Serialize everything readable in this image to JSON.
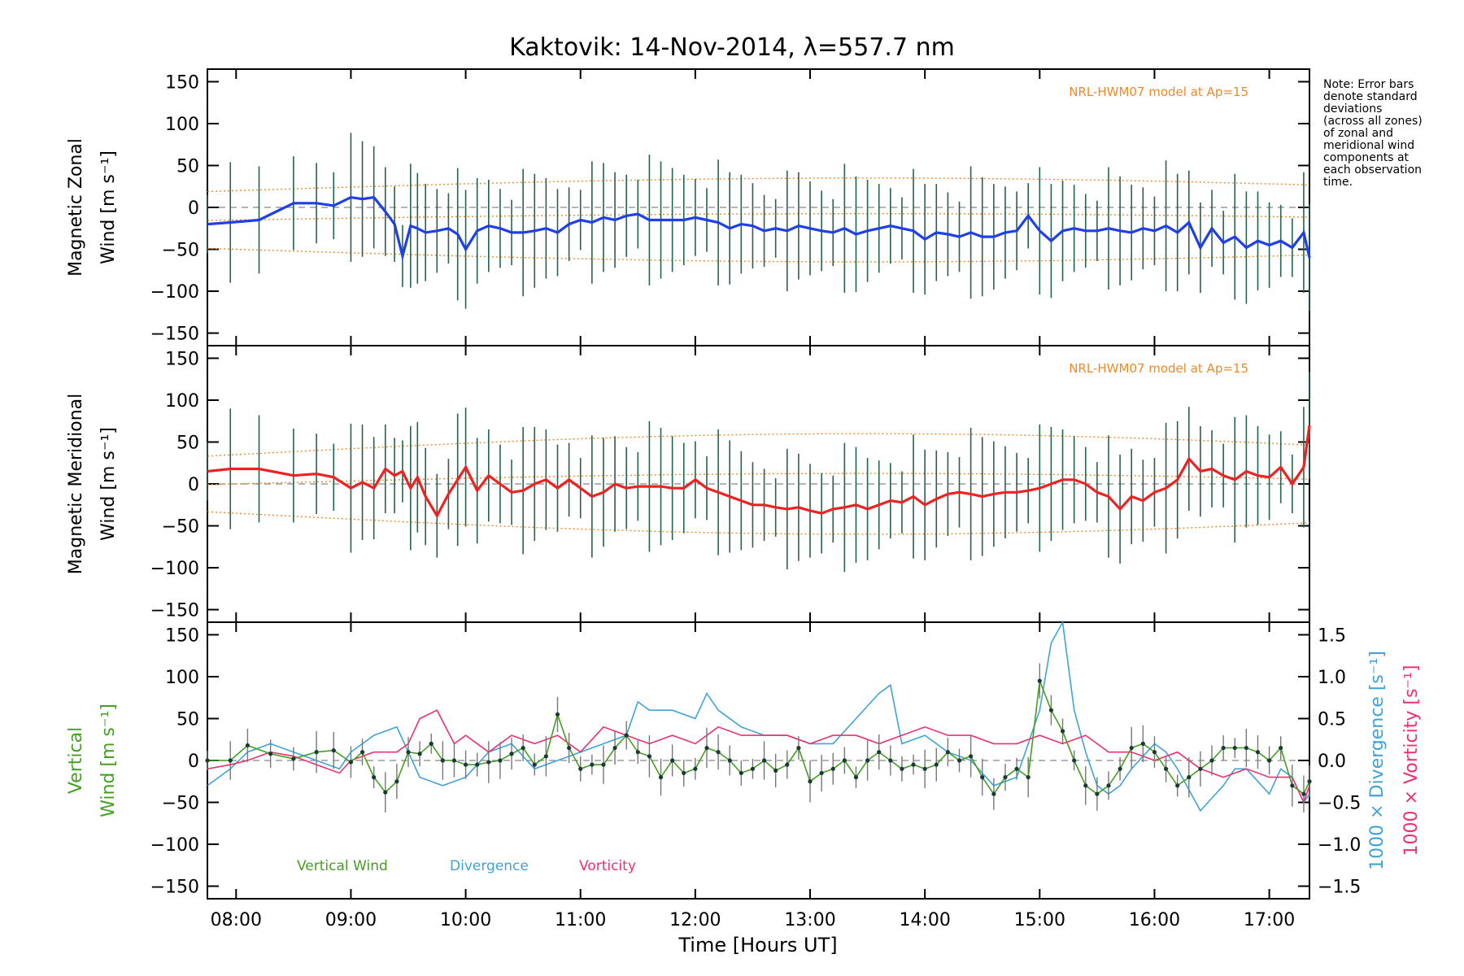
{
  "title": "Kaktovik: 14-Nov-2014, λ=557.7 nm",
  "note": [
    "Note: Error bars",
    "denote standard",
    "deviations",
    "(across all zones)",
    "of zonal and",
    "meridional wind",
    "components at",
    "each observation",
    "time."
  ],
  "xlabel": "Time [Hours UT]",
  "colors": {
    "zonal": "#1f3fe8",
    "meridional": "#ee2222",
    "vertical": "#44a020",
    "divergence": "#3fa3d8",
    "vorticity": "#ee3070",
    "model": "#f08a28",
    "errorbar": "#2a6050"
  },
  "chart_data": [
    {
      "type": "line",
      "name": "zonal",
      "ylabel_1": "Magnetic Zonal",
      "ylabel_2": "Wind [m s⁻¹]",
      "ylim": [
        -165,
        165
      ],
      "model_label": "NRL-HWM07 model at Ap=15",
      "series": [
        {
          "name": "Magnetic Zonal Wind",
          "x": [
            7.75,
            7.95,
            8.2,
            8.5,
            8.7,
            8.85,
            9.0,
            9.1,
            9.2,
            9.3,
            9.38,
            9.45,
            9.52,
            9.58,
            9.65,
            9.75,
            9.85,
            9.93,
            10.0,
            10.1,
            10.2,
            10.3,
            10.4,
            10.5,
            10.6,
            10.7,
            10.8,
            10.9,
            11.0,
            11.1,
            11.2,
            11.3,
            11.4,
            11.5,
            11.6,
            11.7,
            11.8,
            11.9,
            12.0,
            12.1,
            12.2,
            12.3,
            12.4,
            12.5,
            12.6,
            12.7,
            12.8,
            12.9,
            13.0,
            13.1,
            13.2,
            13.3,
            13.4,
            13.5,
            13.6,
            13.7,
            13.8,
            13.9,
            14.0,
            14.1,
            14.2,
            14.3,
            14.4,
            14.5,
            14.6,
            14.7,
            14.8,
            14.9,
            15.0,
            15.1,
            15.2,
            15.3,
            15.4,
            15.5,
            15.6,
            15.7,
            15.8,
            15.9,
            16.0,
            16.1,
            16.2,
            16.3,
            16.4,
            16.5,
            16.6,
            16.7,
            16.8,
            16.9,
            17.0,
            17.1,
            17.2,
            17.3,
            17.35
          ],
          "y": [
            -20,
            -18,
            -15,
            5,
            5,
            2,
            12,
            10,
            12,
            -5,
            -20,
            -58,
            -22,
            -25,
            -30,
            -28,
            -25,
            -32,
            -50,
            -28,
            -22,
            -25,
            -30,
            -30,
            -28,
            -25,
            -30,
            -20,
            -15,
            -18,
            -12,
            -15,
            -10,
            -8,
            -15,
            -15,
            -15,
            -15,
            -12,
            -15,
            -18,
            -25,
            -20,
            -22,
            -28,
            -25,
            -28,
            -22,
            -25,
            -28,
            -30,
            -25,
            -32,
            -28,
            -25,
            -22,
            -25,
            -28,
            -38,
            -30,
            -32,
            -35,
            -30,
            -35,
            -35,
            -30,
            -28,
            -10,
            -28,
            -40,
            -28,
            -25,
            -28,
            -28,
            -25,
            -28,
            -30,
            -25,
            -28,
            -22,
            -30,
            -18,
            -48,
            -25,
            -42,
            -35,
            -48,
            -40,
            -45,
            -40,
            -48,
            -30,
            -60
          ]
        }
      ],
      "categories": [
        "08:00",
        "09:00",
        "10:00",
        "11:00",
        "12:00",
        "13:00",
        "14:00",
        "15:00",
        "16:00",
        "17:00"
      ],
      "yticks": [
        "150",
        "100",
        "50",
        "0",
        "−50",
        "−100",
        "−150"
      ]
    },
    {
      "type": "line",
      "name": "meridional",
      "ylabel_1": "Magnetic Meridional",
      "ylabel_2": "Wind [m s⁻¹]",
      "ylim": [
        -165,
        165
      ],
      "model_label": "NRL-HWM07 model at Ap=15",
      "series": [
        {
          "name": "Magnetic Meridional Wind",
          "x": [
            7.75,
            7.95,
            8.2,
            8.5,
            8.7,
            8.85,
            9.0,
            9.1,
            9.2,
            9.3,
            9.38,
            9.45,
            9.52,
            9.58,
            9.65,
            9.75,
            9.85,
            9.93,
            10.0,
            10.1,
            10.2,
            10.3,
            10.4,
            10.5,
            10.6,
            10.7,
            10.8,
            10.9,
            11.0,
            11.1,
            11.2,
            11.3,
            11.4,
            11.5,
            11.6,
            11.7,
            11.8,
            11.9,
            12.0,
            12.1,
            12.2,
            12.3,
            12.4,
            12.5,
            12.6,
            12.7,
            12.8,
            12.9,
            13.0,
            13.1,
            13.2,
            13.3,
            13.4,
            13.5,
            13.6,
            13.7,
            13.8,
            13.9,
            14.0,
            14.1,
            14.2,
            14.3,
            14.4,
            14.5,
            14.6,
            14.7,
            14.8,
            14.9,
            15.0,
            15.1,
            15.2,
            15.3,
            15.4,
            15.5,
            15.6,
            15.7,
            15.8,
            15.9,
            16.0,
            16.1,
            16.2,
            16.3,
            16.4,
            16.5,
            16.6,
            16.7,
            16.8,
            16.9,
            17.0,
            17.1,
            17.2,
            17.3,
            17.35
          ],
          "y": [
            15,
            18,
            18,
            10,
            12,
            8,
            -5,
            2,
            -5,
            18,
            10,
            15,
            -5,
            8,
            -15,
            -38,
            -12,
            5,
            20,
            -8,
            10,
            0,
            -10,
            -8,
            0,
            5,
            -5,
            5,
            -5,
            -15,
            -10,
            0,
            -5,
            -3,
            -3,
            -3,
            -5,
            -5,
            5,
            -5,
            -10,
            -15,
            -20,
            -25,
            -25,
            -28,
            -30,
            -28,
            -32,
            -35,
            -30,
            -28,
            -25,
            -30,
            -25,
            -20,
            -22,
            -15,
            -25,
            -18,
            -12,
            -10,
            -12,
            -15,
            -12,
            -10,
            -10,
            -8,
            -5,
            0,
            5,
            5,
            0,
            -10,
            -15,
            -30,
            -15,
            -20,
            -10,
            -5,
            5,
            30,
            15,
            18,
            10,
            5,
            15,
            10,
            8,
            20,
            0,
            20,
            70
          ]
        }
      ],
      "categories": [
        "08:00",
        "09:00",
        "10:00",
        "11:00",
        "12:00",
        "13:00",
        "14:00",
        "15:00",
        "16:00",
        "17:00"
      ],
      "yticks": [
        "150",
        "100",
        "50",
        "0",
        "−50",
        "−100",
        "−150"
      ]
    },
    {
      "type": "line",
      "name": "vertical",
      "ylabel_1": "Vertical",
      "ylabel_2": "Wind [m s⁻¹]",
      "ylim": [
        -165,
        165
      ],
      "y2label_1": "1000 × Divergence [s⁻¹]",
      "y2label_2": "1000 × Vorticity [s⁻¹]",
      "y2lim": [
        -1.65,
        1.65
      ],
      "y2ticks": [
        "1.5",
        "1.0",
        "0.5",
        "0.0",
        "−0.5",
        "−1.0",
        "−1.5"
      ],
      "legend": [
        "Vertical Wind",
        "Divergence",
        "Vorticity"
      ],
      "series": [
        {
          "name": "Vertical Wind",
          "x": [
            7.75,
            7.95,
            8.1,
            8.3,
            8.5,
            8.7,
            8.85,
            9.0,
            9.1,
            9.2,
            9.3,
            9.4,
            9.5,
            9.6,
            9.7,
            9.8,
            9.9,
            10.0,
            10.1,
            10.2,
            10.3,
            10.4,
            10.5,
            10.6,
            10.7,
            10.8,
            10.9,
            11.0,
            11.1,
            11.2,
            11.3,
            11.4,
            11.5,
            11.6,
            11.7,
            11.8,
            11.9,
            12.0,
            12.1,
            12.2,
            12.3,
            12.4,
            12.5,
            12.6,
            12.7,
            12.8,
            12.9,
            13.0,
            13.1,
            13.2,
            13.3,
            13.4,
            13.5,
            13.6,
            13.7,
            13.8,
            13.9,
            14.0,
            14.1,
            14.2,
            14.3,
            14.4,
            14.5,
            14.6,
            14.7,
            14.8,
            14.9,
            15.0,
            15.1,
            15.2,
            15.3,
            15.4,
            15.5,
            15.6,
            15.7,
            15.8,
            15.9,
            16.0,
            16.1,
            16.2,
            16.3,
            16.4,
            16.5,
            16.6,
            16.7,
            16.8,
            16.9,
            17.0,
            17.1,
            17.2,
            17.3,
            17.35
          ],
          "y": [
            0,
            0,
            18,
            8,
            2,
            10,
            12,
            -2,
            10,
            -20,
            -38,
            -25,
            10,
            8,
            20,
            0,
            0,
            -5,
            -5,
            -2,
            0,
            8,
            15,
            -5,
            5,
            55,
            15,
            -10,
            -5,
            -5,
            15,
            30,
            10,
            5,
            -20,
            0,
            -15,
            -10,
            15,
            10,
            0,
            -15,
            -10,
            0,
            -12,
            -5,
            15,
            -25,
            -15,
            -10,
            0,
            -20,
            0,
            10,
            0,
            -10,
            -5,
            -10,
            -5,
            10,
            0,
            5,
            -20,
            -40,
            -20,
            -10,
            -20,
            95,
            60,
            35,
            0,
            -30,
            -40,
            -30,
            -10,
            15,
            20,
            10,
            -10,
            -30,
            -20,
            -10,
            0,
            15,
            15,
            15,
            10,
            0,
            15,
            -30,
            -40,
            -25
          ]
        },
        {
          "name": "Divergence",
          "x": [
            7.75,
            7.95,
            8.1,
            8.3,
            8.5,
            8.7,
            8.9,
            9.0,
            9.2,
            9.4,
            9.5,
            9.6,
            9.8,
            10.0,
            10.2,
            10.4,
            10.6,
            10.8,
            11.0,
            11.2,
            11.4,
            11.5,
            11.6,
            11.8,
            12.0,
            12.1,
            12.2,
            12.4,
            12.6,
            12.8,
            13.0,
            13.2,
            13.4,
            13.6,
            13.7,
            13.8,
            14.0,
            14.2,
            14.4,
            14.6,
            14.8,
            15.0,
            15.1,
            15.2,
            15.3,
            15.4,
            15.5,
            15.6,
            15.7,
            15.8,
            16.0,
            16.1,
            16.2,
            16.4,
            16.6,
            16.7,
            16.8,
            17.0,
            17.1,
            17.2,
            17.3,
            17.35
          ],
          "y": [
            -0.3,
            -0.1,
            0.1,
            0.2,
            0.1,
            0.0,
            -0.1,
            0.1,
            0.3,
            0.4,
            0.1,
            -0.2,
            -0.3,
            -0.2,
            0.1,
            0.2,
            -0.1,
            0.0,
            0.1,
            0.2,
            0.3,
            0.7,
            0.6,
            0.6,
            0.5,
            0.8,
            0.6,
            0.4,
            0.3,
            0.3,
            0.2,
            0.2,
            0.5,
            0.8,
            0.9,
            0.2,
            0.3,
            0.1,
            0.0,
            -0.3,
            -0.2,
            0.6,
            1.4,
            1.7,
            0.6,
            0.1,
            -0.3,
            -0.4,
            -0.3,
            -0.1,
            0.2,
            0.1,
            -0.1,
            -0.6,
            -0.3,
            -0.1,
            -0.1,
            -0.4,
            -0.1,
            -0.2,
            -0.5,
            -0.4
          ]
        },
        {
          "name": "Vorticity",
          "x": [
            7.75,
            7.95,
            8.1,
            8.3,
            8.5,
            8.7,
            8.9,
            9.0,
            9.2,
            9.4,
            9.5,
            9.6,
            9.75,
            9.9,
            10.0,
            10.2,
            10.4,
            10.6,
            10.8,
            11.0,
            11.2,
            11.4,
            11.6,
            11.8,
            12.0,
            12.2,
            12.4,
            12.6,
            12.8,
            13.0,
            13.2,
            13.4,
            13.6,
            13.8,
            14.0,
            14.2,
            14.4,
            14.6,
            14.8,
            15.0,
            15.2,
            15.4,
            15.5,
            15.6,
            15.8,
            16.0,
            16.2,
            16.4,
            16.6,
            16.8,
            17.0,
            17.2,
            17.3,
            17.35
          ],
          "y": [
            -0.1,
            -0.05,
            0.0,
            0.1,
            0.05,
            -0.05,
            -0.15,
            0.0,
            0.1,
            0.1,
            0.2,
            0.5,
            0.6,
            0.2,
            0.3,
            0.1,
            0.3,
            0.2,
            0.3,
            0.1,
            0.4,
            0.3,
            0.2,
            0.3,
            0.2,
            0.4,
            0.3,
            0.3,
            0.3,
            0.2,
            0.3,
            0.3,
            0.2,
            0.3,
            0.4,
            0.3,
            0.3,
            0.2,
            0.2,
            0.3,
            0.2,
            0.3,
            0.2,
            0.1,
            0.1,
            0.0,
            0.1,
            -0.1,
            -0.2,
            -0.1,
            -0.2,
            -0.2,
            -0.5,
            -0.3
          ]
        }
      ],
      "categories": [
        "08:00",
        "09:00",
        "10:00",
        "11:00",
        "12:00",
        "13:00",
        "14:00",
        "15:00",
        "16:00",
        "17:00"
      ],
      "yticks": [
        "150",
        "100",
        "50",
        "0",
        "−50",
        "−100",
        "−150"
      ]
    }
  ]
}
